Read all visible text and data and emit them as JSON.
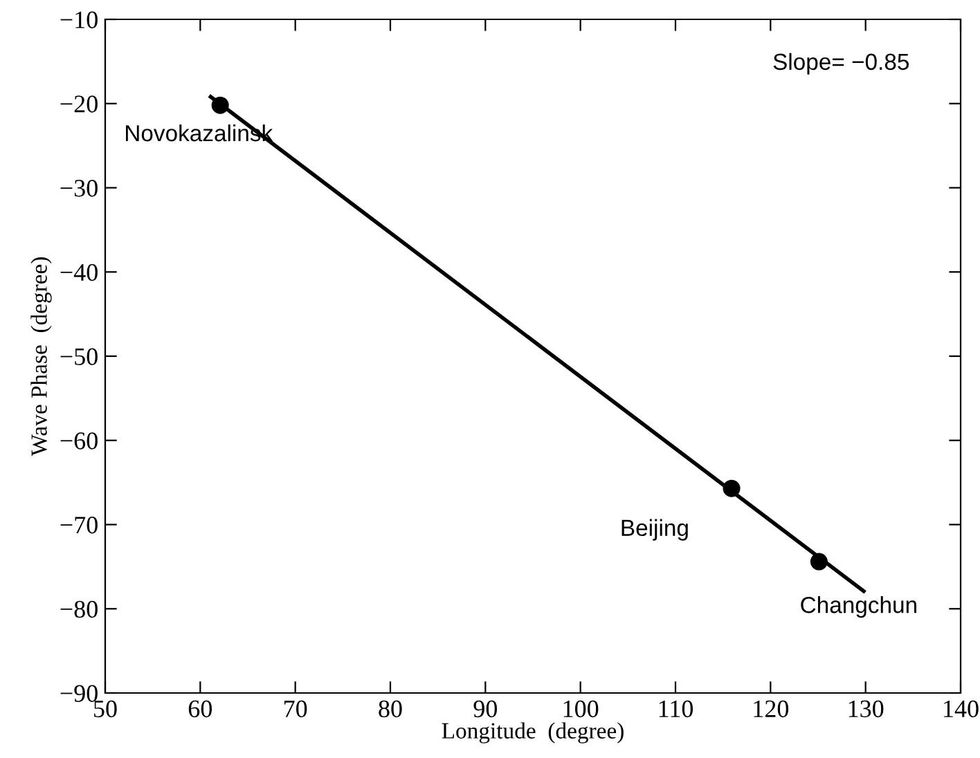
{
  "chart_data": {
    "type": "scatter",
    "xlabel": "Longitude  (degree)",
    "ylabel": "Wave Phase  (degree)",
    "xlim": [
      50,
      140
    ],
    "xticks": [
      50,
      60,
      70,
      80,
      90,
      100,
      110,
      120,
      130,
      140
    ],
    "ylim": [
      -90,
      -10
    ],
    "yticks": [
      -90,
      -80,
      -70,
      -60,
      -50,
      -40,
      -30,
      -20,
      -10
    ],
    "grid": false,
    "legend": false,
    "series": [
      {
        "color": "#000000",
        "marker": "circle",
        "x": [
          62.1,
          115.9,
          125.1
        ],
        "values": [
          -20.2,
          -65.7,
          -74.4
        ]
      },
      {
        "type": "line",
        "color": "#000000",
        "marker": "none",
        "line_style": "solid",
        "x": [
          61.1,
          129.8
        ],
        "values": [
          -19.2,
          -77.9
        ]
      }
    ],
    "annotations": [
      {
        "text": "Novokazalinsk",
        "x": 62.1,
        "y": -20.2
      },
      {
        "text": "Beijing",
        "x": 115.9,
        "y": -65.7
      },
      {
        "text": "Changchun",
        "x": 125.1,
        "y": -74.4
      },
      "Slope= −0.85"
    ]
  }
}
